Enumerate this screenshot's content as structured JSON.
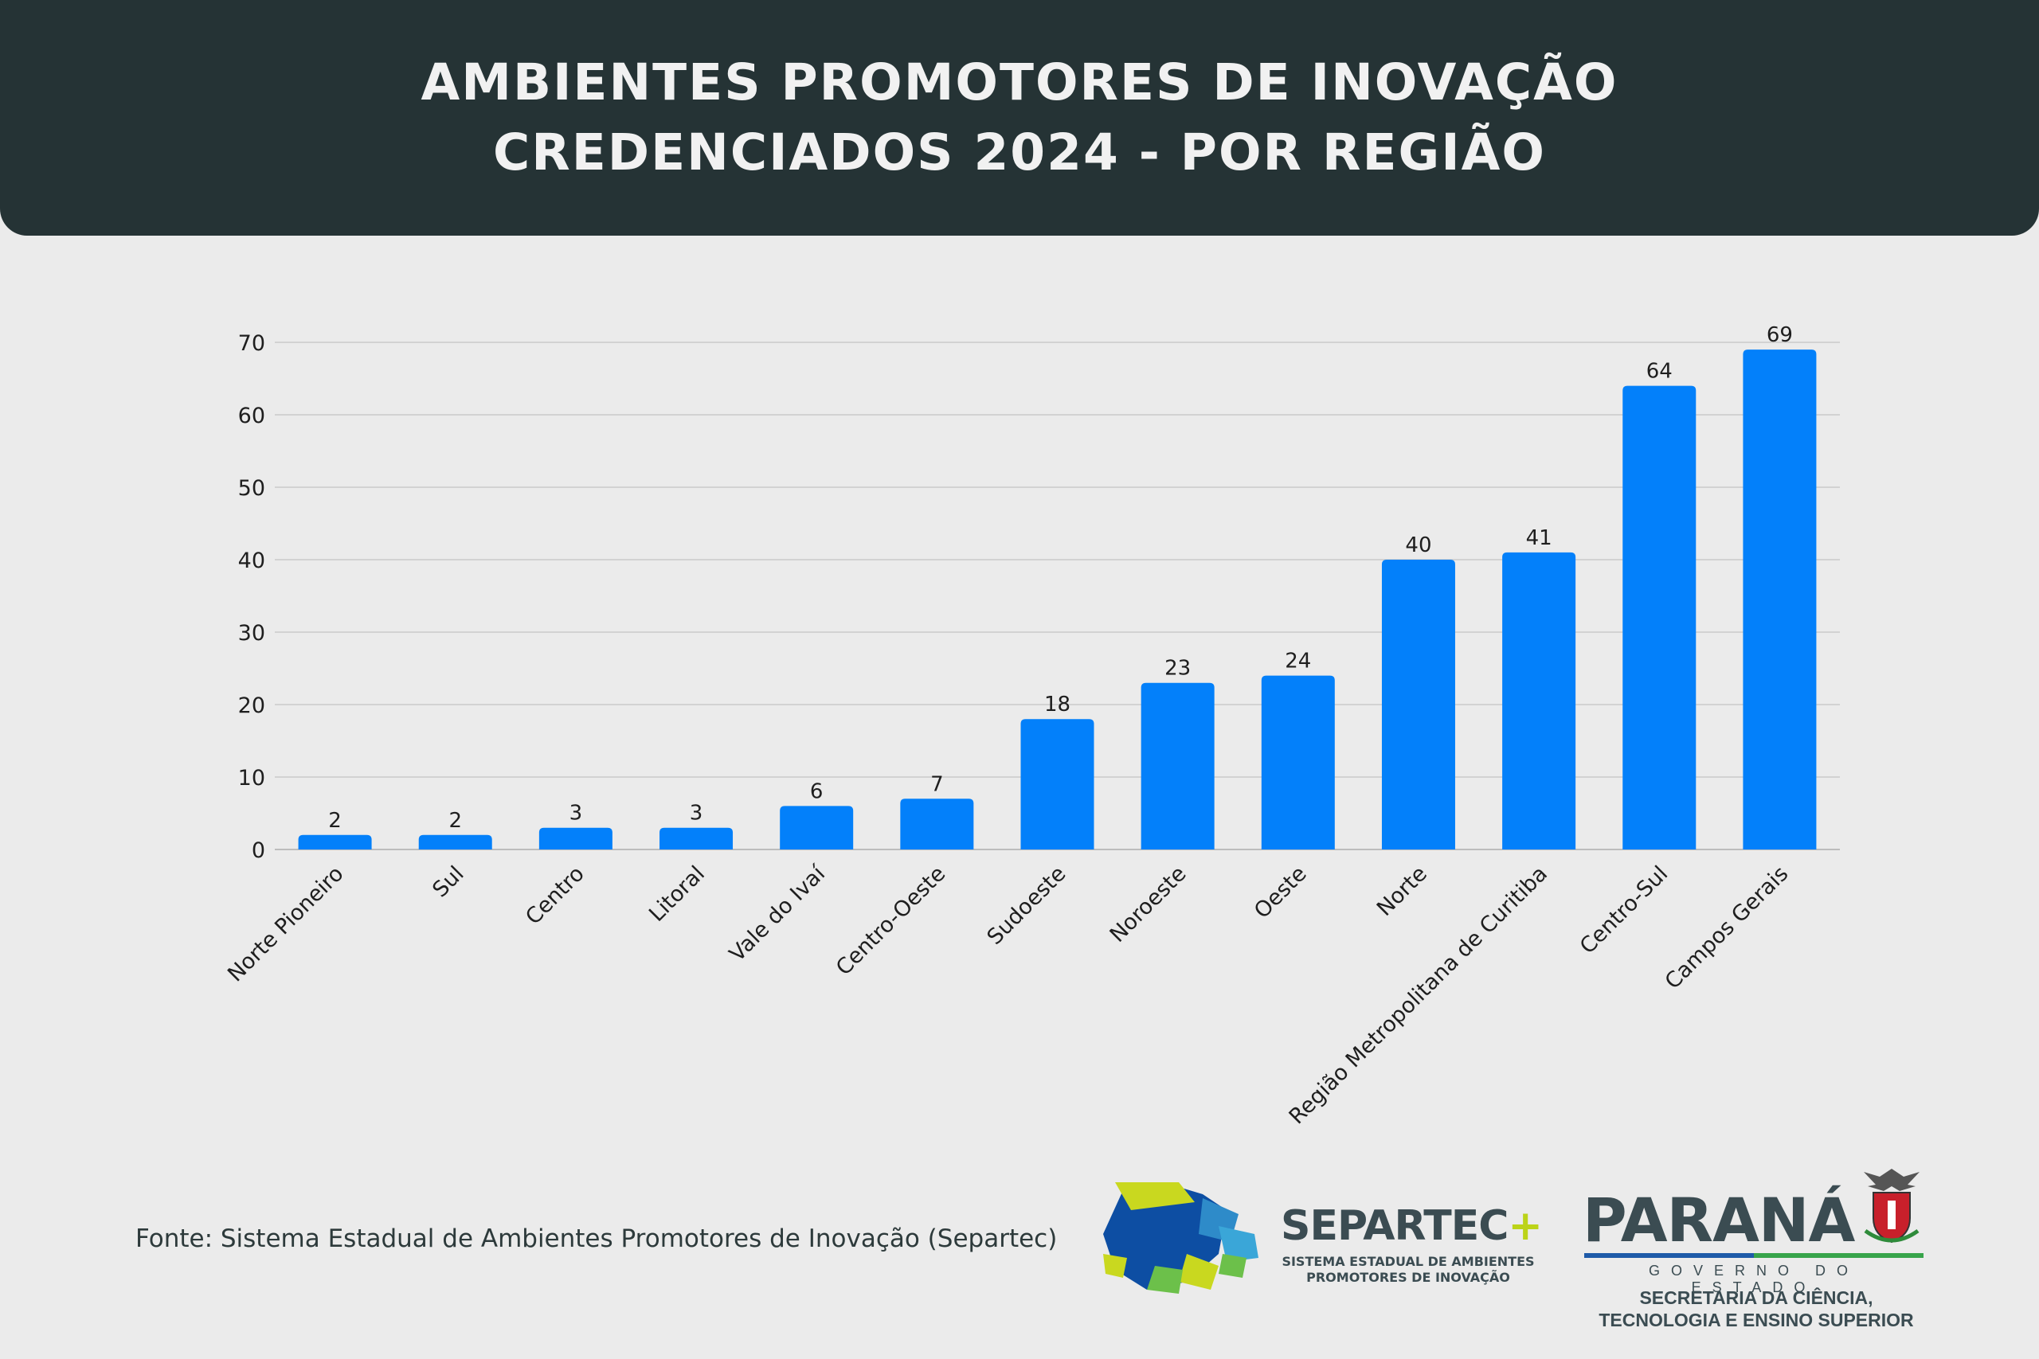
{
  "header": {
    "title_line1": "AMBIENTES PROMOTORES DE INOVAÇÃO",
    "title_line2": "CREDENCIADOS 2024 - POR REGIÃO",
    "background": "#253335"
  },
  "chart_data": {
    "type": "bar",
    "categories": [
      "Norte Pioneiro",
      "Sul",
      "Centro",
      "Litoral",
      "Vale do Ivaí",
      "Centro-Oeste",
      "Sudoeste",
      "Noroeste",
      "Oeste",
      "Norte",
      "Região Metropolitana de Curitiba",
      "Centro-Sul",
      "Campos Gerais"
    ],
    "values": [
      2,
      2,
      3,
      3,
      6,
      7,
      18,
      23,
      24,
      40,
      41,
      64,
      69
    ],
    "ylim": [
      0,
      70
    ],
    "yticks": [
      0,
      10,
      20,
      30,
      40,
      50,
      60,
      70
    ],
    "grid": true,
    "data_labels": true,
    "bar_color": "#0380fa"
  },
  "footer": {
    "source": "Fonte: Sistema Estadual de Ambientes Promotores de Inovação (Separtec)",
    "separtec_title": "SEPARTEC",
    "separtec_plus": "+",
    "separtec_sub_line1": "SISTEMA ESTADUAL DE AMBIENTES",
    "separtec_sub_line2": "PROMOTORES DE INOVAÇÃO",
    "parana_word": "PARANÁ",
    "parana_gov": "GOVERNO DO ESTADO",
    "parana_sec_line1": "SECRETARIA DA CIÊNCIA,",
    "parana_sec_line2": "TECNOLOGIA E ENSINO SUPERIOR"
  }
}
